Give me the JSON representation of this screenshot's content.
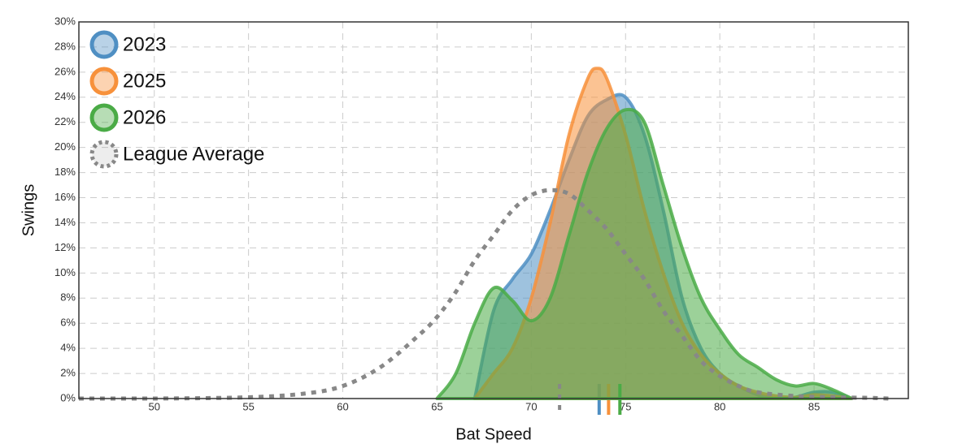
{
  "chart_data": {
    "type": "density",
    "x_label": "Bat Speed",
    "y_label": "Swings",
    "xlim": [
      46,
      90
    ],
    "ylim": [
      0,
      30
    ],
    "xticks": [
      50,
      55,
      60,
      65,
      70,
      75,
      80,
      85
    ],
    "yticks": [
      {
        "value": 0,
        "label": "0%"
      },
      {
        "value": 2,
        "label": "2%"
      },
      {
        "value": 4,
        "label": "4%"
      },
      {
        "value": 6,
        "label": "6%"
      },
      {
        "value": 8,
        "label": "8%"
      },
      {
        "value": 10,
        "label": "10%"
      },
      {
        "value": 12,
        "label": "12%"
      },
      {
        "value": 14,
        "label": "14%"
      },
      {
        "value": 16,
        "label": "16%"
      },
      {
        "value": 18,
        "label": "18%"
      },
      {
        "value": 20,
        "label": "20%"
      },
      {
        "value": 22,
        "label": "22%"
      },
      {
        "value": 24,
        "label": "24%"
      },
      {
        "value": 26,
        "label": "26%"
      },
      {
        "value": 28,
        "label": "28%"
      },
      {
        "value": 30,
        "label": "30%"
      }
    ],
    "grid": true,
    "legend": "top-left",
    "series": [
      {
        "name": "2023",
        "color": "#4f8fc3",
        "mean": 73.6,
        "x": [
          67,
          68,
          69,
          70,
          71,
          72,
          73,
          74,
          75,
          76,
          77,
          78,
          79,
          80,
          81,
          82,
          83,
          84,
          85,
          86,
          87
        ],
        "values": [
          0,
          7,
          9.5,
          11.5,
          15,
          19,
          22.5,
          23.8,
          24,
          21,
          15,
          8,
          4,
          2,
          1,
          0.3,
          0,
          0.1,
          0.5,
          0.5,
          0
        ]
      },
      {
        "name": "2025",
        "color": "#f7913b",
        "mean": 74.1,
        "x": [
          67,
          68,
          69,
          70,
          71,
          72,
          73,
          73.5,
          74,
          75,
          76,
          77,
          78,
          79,
          80,
          81,
          82,
          83,
          84,
          85,
          86,
          87
        ],
        "values": [
          0,
          2,
          4,
          8,
          14,
          21,
          25.5,
          26.3,
          25.5,
          21,
          15,
          10,
          6,
          3.5,
          2,
          1,
          0.5,
          0.2,
          0.1,
          0.3,
          0.2,
          0
        ]
      },
      {
        "name": "2026",
        "color": "#4aab46",
        "mean": 74.7,
        "x": [
          65,
          66,
          67,
          68,
          69,
          70,
          71,
          72,
          73,
          74,
          75,
          76,
          77,
          78,
          79,
          80,
          81,
          82,
          83,
          84,
          85,
          86,
          87
        ],
        "values": [
          0,
          2,
          6,
          8.8,
          7.8,
          6.2,
          8,
          13,
          18,
          21.5,
          23,
          22,
          17,
          12,
          8,
          5.5,
          3.5,
          2.5,
          1.5,
          1,
          1.2,
          0.7,
          0
        ]
      },
      {
        "name": "League Average",
        "color": "#888888",
        "line_style": "dotted",
        "mean": 71.5,
        "x": [
          46,
          50,
          55,
          58,
          60,
          62,
          64,
          65,
          66,
          67,
          68,
          69,
          70,
          71,
          72,
          73,
          74,
          75,
          76,
          77,
          78,
          79,
          80,
          81,
          82,
          84,
          86,
          88,
          89
        ],
        "values": [
          0,
          0,
          0.1,
          0.4,
          1,
          2.5,
          5,
          6.5,
          8.5,
          11,
          13,
          15,
          16.2,
          16.6,
          16.3,
          15,
          13.5,
          11.5,
          9.5,
          7,
          5,
          3,
          1.8,
          1,
          0.5,
          0.2,
          0.1,
          0.05,
          0
        ]
      }
    ]
  }
}
